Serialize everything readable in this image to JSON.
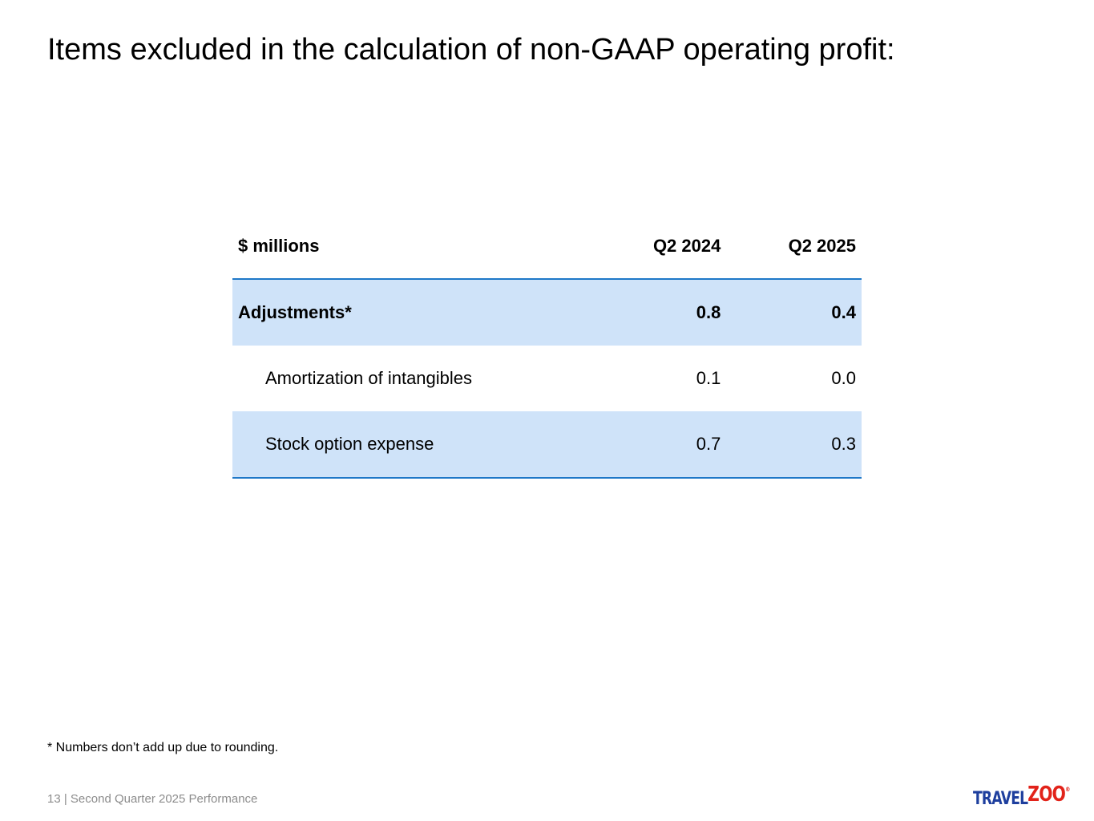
{
  "title": "Items excluded in the calculation of non-GAAP operating profit:",
  "table": {
    "headers": [
      "$ millions",
      "Q2 2024",
      "Q2 2025"
    ],
    "rows": [
      {
        "label": "Adjustments*",
        "q2_2024": "0.8",
        "q2_2025": "0.4"
      },
      {
        "label": "Amortization of intangibles",
        "q2_2024": "0.1",
        "q2_2025": "0.0"
      },
      {
        "label": "Stock option expense",
        "q2_2024": "0.7",
        "q2_2025": "0.3"
      }
    ]
  },
  "footnote": "* Numbers don’t add up due to rounding.",
  "footer": "13 | Second Quarter 2025 Performance",
  "logo": {
    "part1": "TRAVEL",
    "part2": "ZOO",
    "reg_mark": "®",
    "colors": {
      "travel": "#1e3f9e",
      "zoo": "#e2231a"
    }
  },
  "colors": {
    "accent_line": "#1f78c8",
    "row_shade": "#cfe3f9"
  }
}
